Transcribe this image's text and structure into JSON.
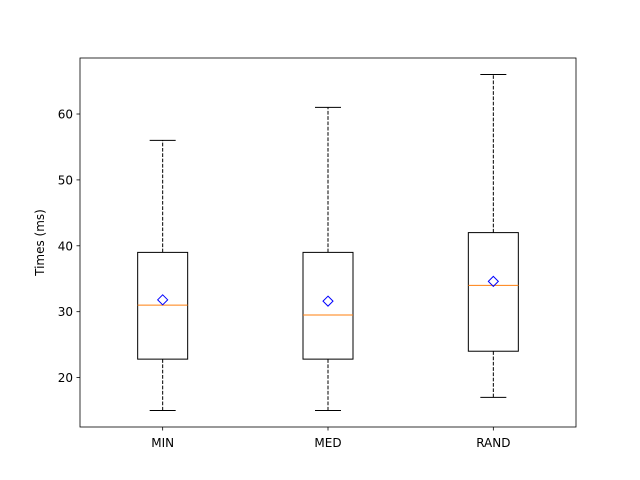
{
  "chart_data": {
    "type": "box",
    "title": "",
    "xlabel": "",
    "ylabel": "Times (ms)",
    "ylim": [
      12.5,
      68.5
    ],
    "yticks": [
      20,
      30,
      40,
      50,
      60
    ],
    "ytick_labels": [
      "20",
      "30",
      "40",
      "50",
      "60"
    ],
    "categories": [
      "MIN",
      "MED",
      "RAND"
    ],
    "boxes": [
      {
        "label": "MIN",
        "whisker_low": 15,
        "q1": 22.8,
        "median": 31.0,
        "q3": 39.0,
        "whisker_high": 56,
        "mean": 31.8
      },
      {
        "label": "MED",
        "whisker_low": 15,
        "q1": 22.8,
        "median": 29.5,
        "q3": 39.0,
        "whisker_high": 61,
        "mean": 31.6
      },
      {
        "label": "RAND",
        "whisker_low": 17,
        "q1": 24.0,
        "median": 34.0,
        "q3": 42.0,
        "whisker_high": 66,
        "mean": 34.6
      }
    ],
    "grid": false,
    "colors": {
      "box": "#000000",
      "median": "#ff7f0e",
      "mean_marker": "#0000ff",
      "whisker": "#000000"
    }
  }
}
